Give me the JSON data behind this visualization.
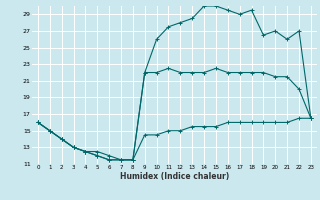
{
  "xlabel": "Humidex (Indice chaleur)",
  "bg_color": "#cce8ef",
  "grid_color": "#ffffff",
  "line_color": "#006868",
  "ylim": [
    11,
    30
  ],
  "xlim": [
    -0.5,
    23.5
  ],
  "yticks": [
    11,
    13,
    15,
    17,
    19,
    21,
    23,
    25,
    27,
    29
  ],
  "xticks": [
    0,
    1,
    2,
    3,
    4,
    5,
    6,
    7,
    8,
    9,
    10,
    11,
    12,
    13,
    14,
    15,
    16,
    17,
    18,
    19,
    20,
    21,
    22,
    23
  ],
  "line1_x": [
    0,
    1,
    2,
    3,
    4,
    5,
    6,
    7,
    8,
    9,
    10,
    11,
    12,
    13,
    14,
    15,
    16,
    17,
    18,
    19,
    20,
    21,
    22,
    23
  ],
  "line1_y": [
    16,
    15,
    14,
    13,
    12.5,
    12,
    11.5,
    11.5,
    11.5,
    14.5,
    14.5,
    15,
    15,
    15.5,
    15.5,
    15.5,
    16,
    16,
    16,
    16,
    16,
    16,
    16.5,
    16.5
  ],
  "line2_x": [
    0,
    1,
    2,
    3,
    4,
    5,
    6,
    7,
    8,
    9,
    10,
    11,
    12,
    13,
    14,
    15,
    16,
    17,
    18,
    19,
    20,
    21,
    22,
    23
  ],
  "line2_y": [
    16,
    15,
    14,
    13,
    12.5,
    12.5,
    12,
    11.5,
    11.5,
    22,
    22,
    22.5,
    22,
    22,
    22,
    22.5,
    22,
    22,
    22,
    22,
    21.5,
    21.5,
    20,
    16.5
  ],
  "line3_x": [
    0,
    1,
    2,
    3,
    4,
    5,
    6,
    7,
    8,
    9,
    10,
    11,
    12,
    13,
    14,
    15,
    16,
    17,
    18,
    19,
    20,
    21,
    22,
    23
  ],
  "line3_y": [
    16,
    15,
    14,
    13,
    12.5,
    12,
    11.5,
    11.5,
    11.5,
    22,
    26,
    27.5,
    28,
    28.5,
    30,
    30,
    29.5,
    29,
    29.5,
    26.5,
    27,
    26,
    27,
    16.5
  ]
}
